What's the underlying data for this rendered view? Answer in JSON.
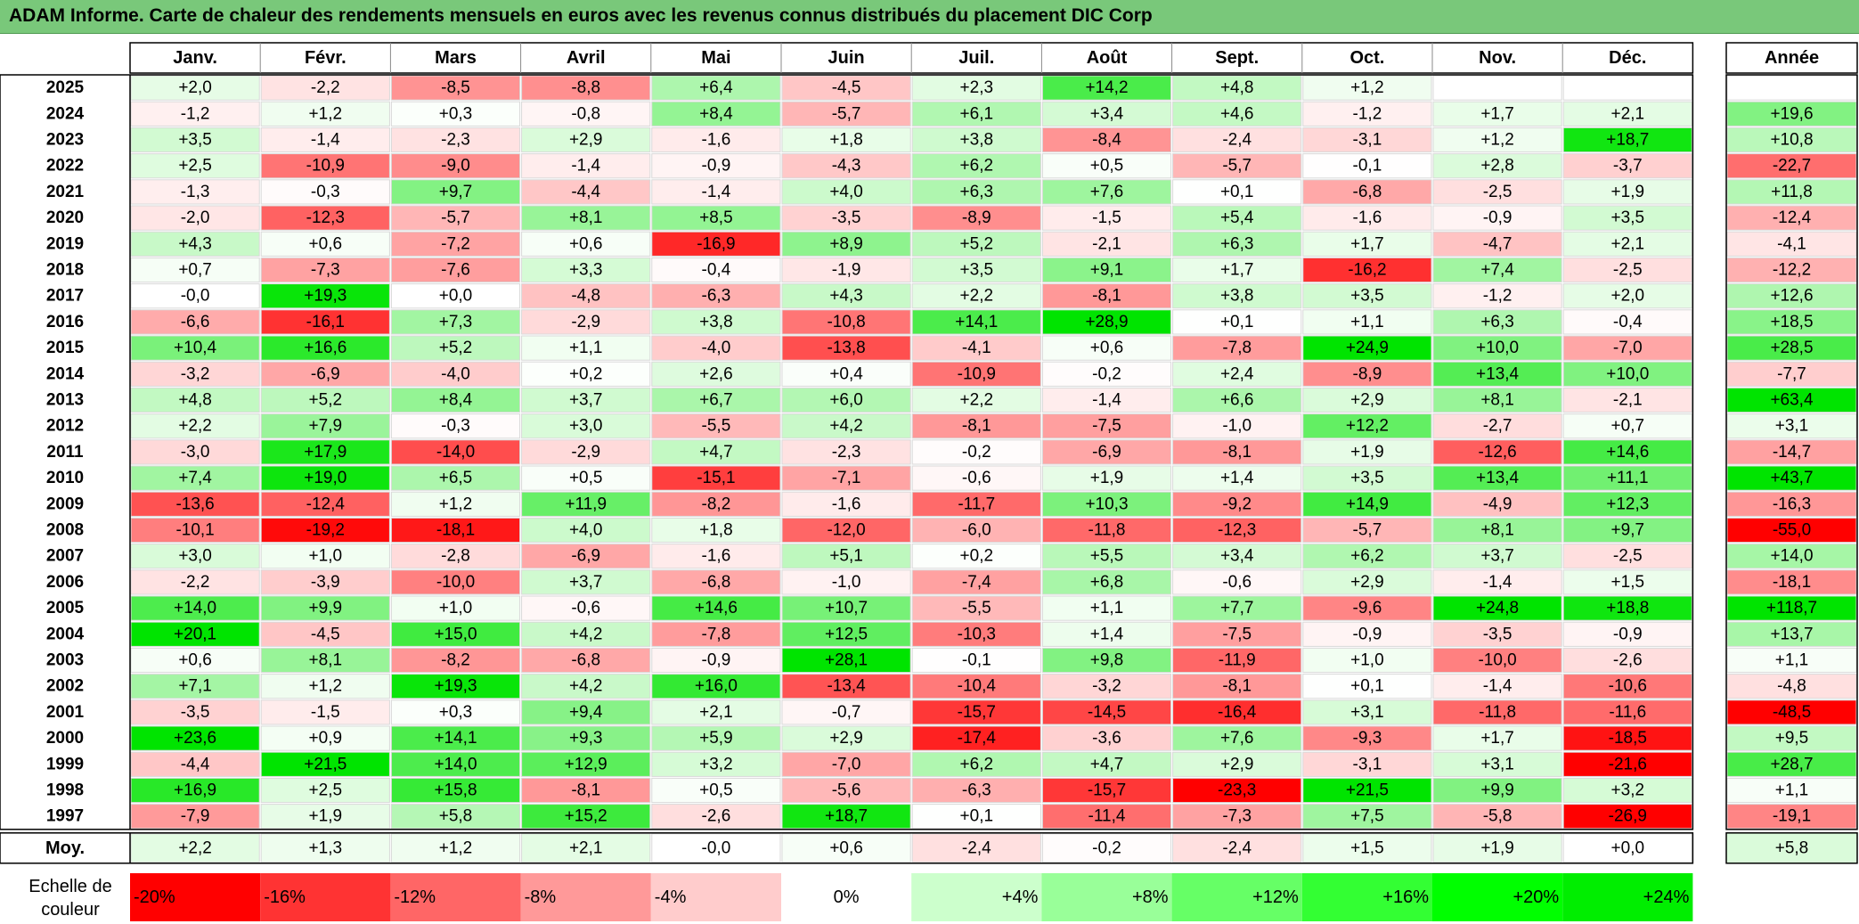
{
  "title": "ADAM Informe. Carte de chaleur des rendements mensuels en euros avec les revenus connus distribués du placement DIC Corp",
  "chart_data": {
    "type": "heatmap",
    "title": "ADAM Informe. Carte de chaleur des rendements mensuels en euros avec les revenus connus distribués du placement DIC Corp",
    "columns": [
      "Janv.",
      "Févr.",
      "Mars",
      "Avril",
      "Mai",
      "Juin",
      "Juil.",
      "Août",
      "Sept.",
      "Oct.",
      "Nov.",
      "Déc."
    ],
    "year_header": "Année",
    "rows": [
      {
        "year": "2025",
        "values": [
          "+2,0",
          "-2,2",
          "-8,5",
          "-8,8",
          "+6,4",
          "-4,5",
          "+2,3",
          "+14,2",
          "+4,8",
          "+1,2",
          "",
          ""
        ],
        "annual": ""
      },
      {
        "year": "2024",
        "values": [
          "-1,2",
          "+1,2",
          "+0,3",
          "-0,8",
          "+8,4",
          "-5,7",
          "+6,1",
          "+3,4",
          "+4,6",
          "-1,2",
          "+1,7",
          "+2,1"
        ],
        "annual": "+19,6"
      },
      {
        "year": "2023",
        "values": [
          "+3,5",
          "-1,4",
          "-2,3",
          "+2,9",
          "-1,6",
          "+1,8",
          "+3,8",
          "-8,4",
          "-2,4",
          "-3,1",
          "+1,2",
          "+18,7"
        ],
        "annual": "+10,8"
      },
      {
        "year": "2022",
        "values": [
          "+2,5",
          "-10,9",
          "-9,0",
          "-1,4",
          "-0,9",
          "-4,3",
          "+6,2",
          "+0,5",
          "-5,7",
          "-0,1",
          "+2,8",
          "-3,7"
        ],
        "annual": "-22,7"
      },
      {
        "year": "2021",
        "values": [
          "-1,3",
          "-0,3",
          "+9,7",
          "-4,4",
          "-1,4",
          "+4,0",
          "+6,3",
          "+7,6",
          "+0,1",
          "-6,8",
          "-2,5",
          "+1,9"
        ],
        "annual": "+11,8"
      },
      {
        "year": "2020",
        "values": [
          "-2,0",
          "-12,3",
          "-5,7",
          "+8,1",
          "+8,5",
          "-3,5",
          "-8,9",
          "-1,5",
          "+5,4",
          "-1,6",
          "-0,9",
          "+3,5"
        ],
        "annual": "-12,4"
      },
      {
        "year": "2019",
        "values": [
          "+4,3",
          "+0,6",
          "-7,2",
          "+0,6",
          "-16,9",
          "+8,9",
          "+5,2",
          "-2,1",
          "+6,3",
          "+1,7",
          "-4,7",
          "+2,1"
        ],
        "annual": "-4,1"
      },
      {
        "year": "2018",
        "values": [
          "+0,7",
          "-7,3",
          "-7,6",
          "+3,3",
          "-0,4",
          "-1,9",
          "+3,5",
          "+9,1",
          "+1,7",
          "-16,2",
          "+7,4",
          "-2,5"
        ],
        "annual": "-12,2"
      },
      {
        "year": "2017",
        "values": [
          "-0,0",
          "+19,3",
          "+0,0",
          "-4,8",
          "-6,3",
          "+4,3",
          "+2,2",
          "-8,1",
          "+3,8",
          "+3,5",
          "-1,2",
          "+2,0"
        ],
        "annual": "+12,6"
      },
      {
        "year": "2016",
        "values": [
          "-6,6",
          "-16,1",
          "+7,3",
          "-2,9",
          "+3,8",
          "-10,8",
          "+14,1",
          "+28,9",
          "+0,1",
          "+1,1",
          "+6,3",
          "-0,4"
        ],
        "annual": "+18,5"
      },
      {
        "year": "2015",
        "values": [
          "+10,4",
          "+16,6",
          "+5,2",
          "+1,1",
          "-4,0",
          "-13,8",
          "-4,1",
          "+0,6",
          "-7,8",
          "+24,9",
          "+10,0",
          "-7,0"
        ],
        "annual": "+28,5"
      },
      {
        "year": "2014",
        "values": [
          "-3,2",
          "-6,9",
          "-4,0",
          "+0,2",
          "+2,6",
          "+0,4",
          "-10,9",
          "-0,2",
          "+2,4",
          "-8,9",
          "+13,4",
          "+10,0"
        ],
        "annual": "-7,7"
      },
      {
        "year": "2013",
        "values": [
          "+4,8",
          "+5,2",
          "+8,4",
          "+3,7",
          "+6,7",
          "+6,0",
          "+2,2",
          "-1,4",
          "+6,6",
          "+2,9",
          "+8,1",
          "-2,1"
        ],
        "annual": "+63,4"
      },
      {
        "year": "2012",
        "values": [
          "+2,2",
          "+7,9",
          "-0,3",
          "+3,0",
          "-5,5",
          "+4,2",
          "-8,1",
          "-7,5",
          "-1,0",
          "+12,2",
          "-2,7",
          "+0,7"
        ],
        "annual": "+3,1"
      },
      {
        "year": "2011",
        "values": [
          "-3,0",
          "+17,9",
          "-14,0",
          "-2,9",
          "+4,7",
          "-2,3",
          "-0,2",
          "-6,9",
          "-8,1",
          "+1,9",
          "-12,6",
          "+14,6"
        ],
        "annual": "-14,7"
      },
      {
        "year": "2010",
        "values": [
          "+7,4",
          "+19,0",
          "+6,5",
          "+0,5",
          "-15,1",
          "-7,1",
          "-0,6",
          "+1,9",
          "+1,4",
          "+3,5",
          "+13,4",
          "+11,1"
        ],
        "annual": "+43,7"
      },
      {
        "year": "2009",
        "values": [
          "-13,6",
          "-12,4",
          "+1,2",
          "+11,9",
          "-8,2",
          "-1,6",
          "-11,7",
          "+10,3",
          "-9,2",
          "+14,9",
          "-4,9",
          "+12,3"
        ],
        "annual": "-16,3"
      },
      {
        "year": "2008",
        "values": [
          "-10,1",
          "-19,2",
          "-18,1",
          "+4,0",
          "+1,8",
          "-12,0",
          "-6,0",
          "-11,8",
          "-12,3",
          "-5,7",
          "+8,1",
          "+9,7"
        ],
        "annual": "-55,0"
      },
      {
        "year": "2007",
        "values": [
          "+3,0",
          "+1,0",
          "-2,8",
          "-6,9",
          "-1,6",
          "+5,1",
          "+0,2",
          "+5,5",
          "+3,4",
          "+6,2",
          "+3,7",
          "-2,5"
        ],
        "annual": "+14,0"
      },
      {
        "year": "2006",
        "values": [
          "-2,2",
          "-3,9",
          "-10,0",
          "+3,7",
          "-6,8",
          "-1,0",
          "-7,4",
          "+6,8",
          "-0,6",
          "+2,9",
          "-1,4",
          "+1,5"
        ],
        "annual": "-18,1"
      },
      {
        "year": "2005",
        "values": [
          "+14,0",
          "+9,9",
          "+1,0",
          "-0,6",
          "+14,6",
          "+10,7",
          "-5,5",
          "+1,1",
          "+7,7",
          "-9,6",
          "+24,8",
          "+18,8"
        ],
        "annual": "+118,7"
      },
      {
        "year": "2004",
        "values": [
          "+20,1",
          "-4,5",
          "+15,0",
          "+4,2",
          "-7,8",
          "+12,5",
          "-10,3",
          "+1,4",
          "-7,5",
          "-0,9",
          "-3,5",
          "-0,9"
        ],
        "annual": "+13,7"
      },
      {
        "year": "2003",
        "values": [
          "+0,6",
          "+8,1",
          "-8,2",
          "-6,8",
          "-0,9",
          "+28,1",
          "-0,1",
          "+9,8",
          "-11,9",
          "+1,0",
          "-10,0",
          "-2,6"
        ],
        "annual": "+1,1"
      },
      {
        "year": "2002",
        "values": [
          "+7,1",
          "+1,2",
          "+19,3",
          "+4,2",
          "+16,0",
          "-13,4",
          "-10,4",
          "-3,2",
          "-8,1",
          "+0,1",
          "-1,4",
          "-10,6"
        ],
        "annual": "-4,8"
      },
      {
        "year": "2001",
        "values": [
          "-3,5",
          "-1,5",
          "+0,3",
          "+9,4",
          "+2,1",
          "-0,7",
          "-15,7",
          "-14,5",
          "-16,4",
          "+3,1",
          "-11,8",
          "-11,6"
        ],
        "annual": "-48,5"
      },
      {
        "year": "2000",
        "values": [
          "+23,6",
          "+0,9",
          "+14,1",
          "+9,3",
          "+5,9",
          "+2,9",
          "-17,4",
          "-3,6",
          "+7,6",
          "-9,3",
          "+1,7",
          "-18,5"
        ],
        "annual": "+9,5"
      },
      {
        "year": "1999",
        "values": [
          "-4,4",
          "+21,5",
          "+14,0",
          "+12,9",
          "+3,2",
          "-7,0",
          "+6,2",
          "+4,7",
          "+2,9",
          "-3,1",
          "+3,1",
          "-21,6"
        ],
        "annual": "+28,7"
      },
      {
        "year": "1998",
        "values": [
          "+16,9",
          "+2,5",
          "+15,8",
          "-8,1",
          "+0,5",
          "-5,6",
          "-6,3",
          "-15,7",
          "-23,3",
          "+21,5",
          "+9,9",
          "+3,2"
        ],
        "annual": "+1,1"
      },
      {
        "year": "1997",
        "values": [
          "-7,9",
          "+1,9",
          "+5,8",
          "+15,2",
          "-2,6",
          "+18,7",
          "+0,1",
          "-11,4",
          "-7,3",
          "+7,5",
          "-5,8",
          "-26,9"
        ],
        "annual": "-19,1"
      }
    ],
    "average": {
      "label": "Moy.",
      "values": [
        "+2,2",
        "+1,3",
        "+1,2",
        "+2,1",
        "-0,0",
        "+0,6",
        "-2,4",
        "-0,2",
        "-2,4",
        "+1,5",
        "+1,9",
        "+0,0"
      ],
      "annual": "+5,8"
    },
    "scale": {
      "label_lines": [
        "Echelle de",
        "couleur"
      ],
      "stops": [
        {
          "label": "-20%",
          "value": -20,
          "color": "#ff0000"
        },
        {
          "label": "-16%",
          "value": -16,
          "color": "#ff3333"
        },
        {
          "label": "-12%",
          "value": -12,
          "color": "#ff6666"
        },
        {
          "label": "-8%",
          "value": -8,
          "color": "#ff9999"
        },
        {
          "label": "-4%",
          "value": -4,
          "color": "#ffcccc"
        },
        {
          "label": "0%",
          "value": 0,
          "color": "#ffffff"
        },
        {
          "label": "+4%",
          "value": 4,
          "color": "#ccffcc"
        },
        {
          "label": "+8%",
          "value": 8,
          "color": "#99ff99"
        },
        {
          "label": "+12%",
          "value": 12,
          "color": "#66ff66"
        },
        {
          "label": "+16%",
          "value": 16,
          "color": "#33ff33"
        },
        {
          "label": "+20%",
          "value": 20,
          "color": "#00ff00"
        },
        {
          "label": "+24%",
          "value": 24,
          "color": "#00ee00"
        }
      ]
    }
  }
}
